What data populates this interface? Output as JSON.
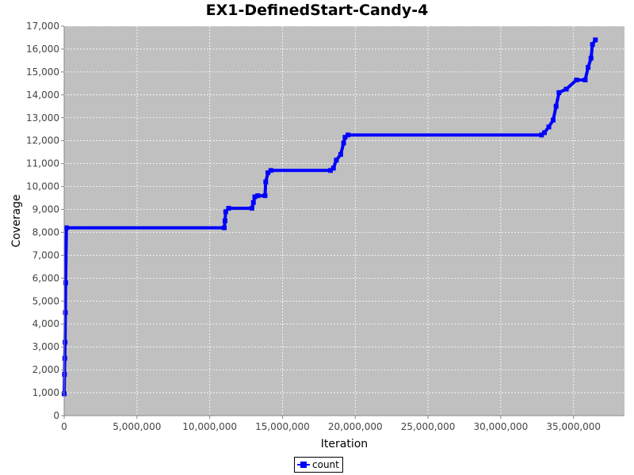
{
  "chart_data": {
    "type": "line",
    "title": "EX1-DefinedStart-Candy-4",
    "xlabel": "Iteration",
    "ylabel": "Coverage",
    "xlim": [
      0,
      38500000
    ],
    "ylim": [
      0,
      17000
    ],
    "x_ticks": [
      "0",
      "5,000,000",
      "10,000,000",
      "15,000,000",
      "20,000,000",
      "25,000,000",
      "30,000,000",
      "35,000,000"
    ],
    "y_ticks": [
      "0",
      "1,000",
      "2,000",
      "3,000",
      "4,000",
      "5,000",
      "6,000",
      "7,000",
      "8,000",
      "9,000",
      "10,000",
      "11,000",
      "12,000",
      "13,000",
      "14,000",
      "15,000",
      "16,000",
      "17,000"
    ],
    "grid": true,
    "legend": "bottom",
    "background": "#c0c0c0",
    "series_color": "#0000ff",
    "series": [
      {
        "name": "count",
        "x": [
          0,
          20000,
          40000,
          60000,
          80000,
          100000,
          150000,
          11000000,
          11050000,
          11100000,
          11300000,
          12900000,
          13000000,
          13100000,
          13300000,
          13800000,
          13850000,
          14000000,
          14200000,
          18300000,
          18500000,
          18700000,
          19000000,
          19200000,
          19300000,
          19500000,
          32800000,
          33000000,
          33300000,
          33600000,
          33800000,
          34000000,
          34500000,
          35200000,
          35800000,
          36000000,
          36200000,
          36300000,
          36500000
        ],
        "y": [
          950,
          1800,
          2500,
          3200,
          4500,
          5800,
          8200,
          8200,
          8500,
          8900,
          9050,
          9050,
          9300,
          9550,
          9600,
          9600,
          10200,
          10600,
          10700,
          10700,
          10800,
          11150,
          11400,
          11900,
          12150,
          12250,
          12250,
          12350,
          12600,
          12900,
          13500,
          14100,
          14250,
          14650,
          14650,
          15200,
          15600,
          16200,
          16400
        ]
      }
    ]
  }
}
